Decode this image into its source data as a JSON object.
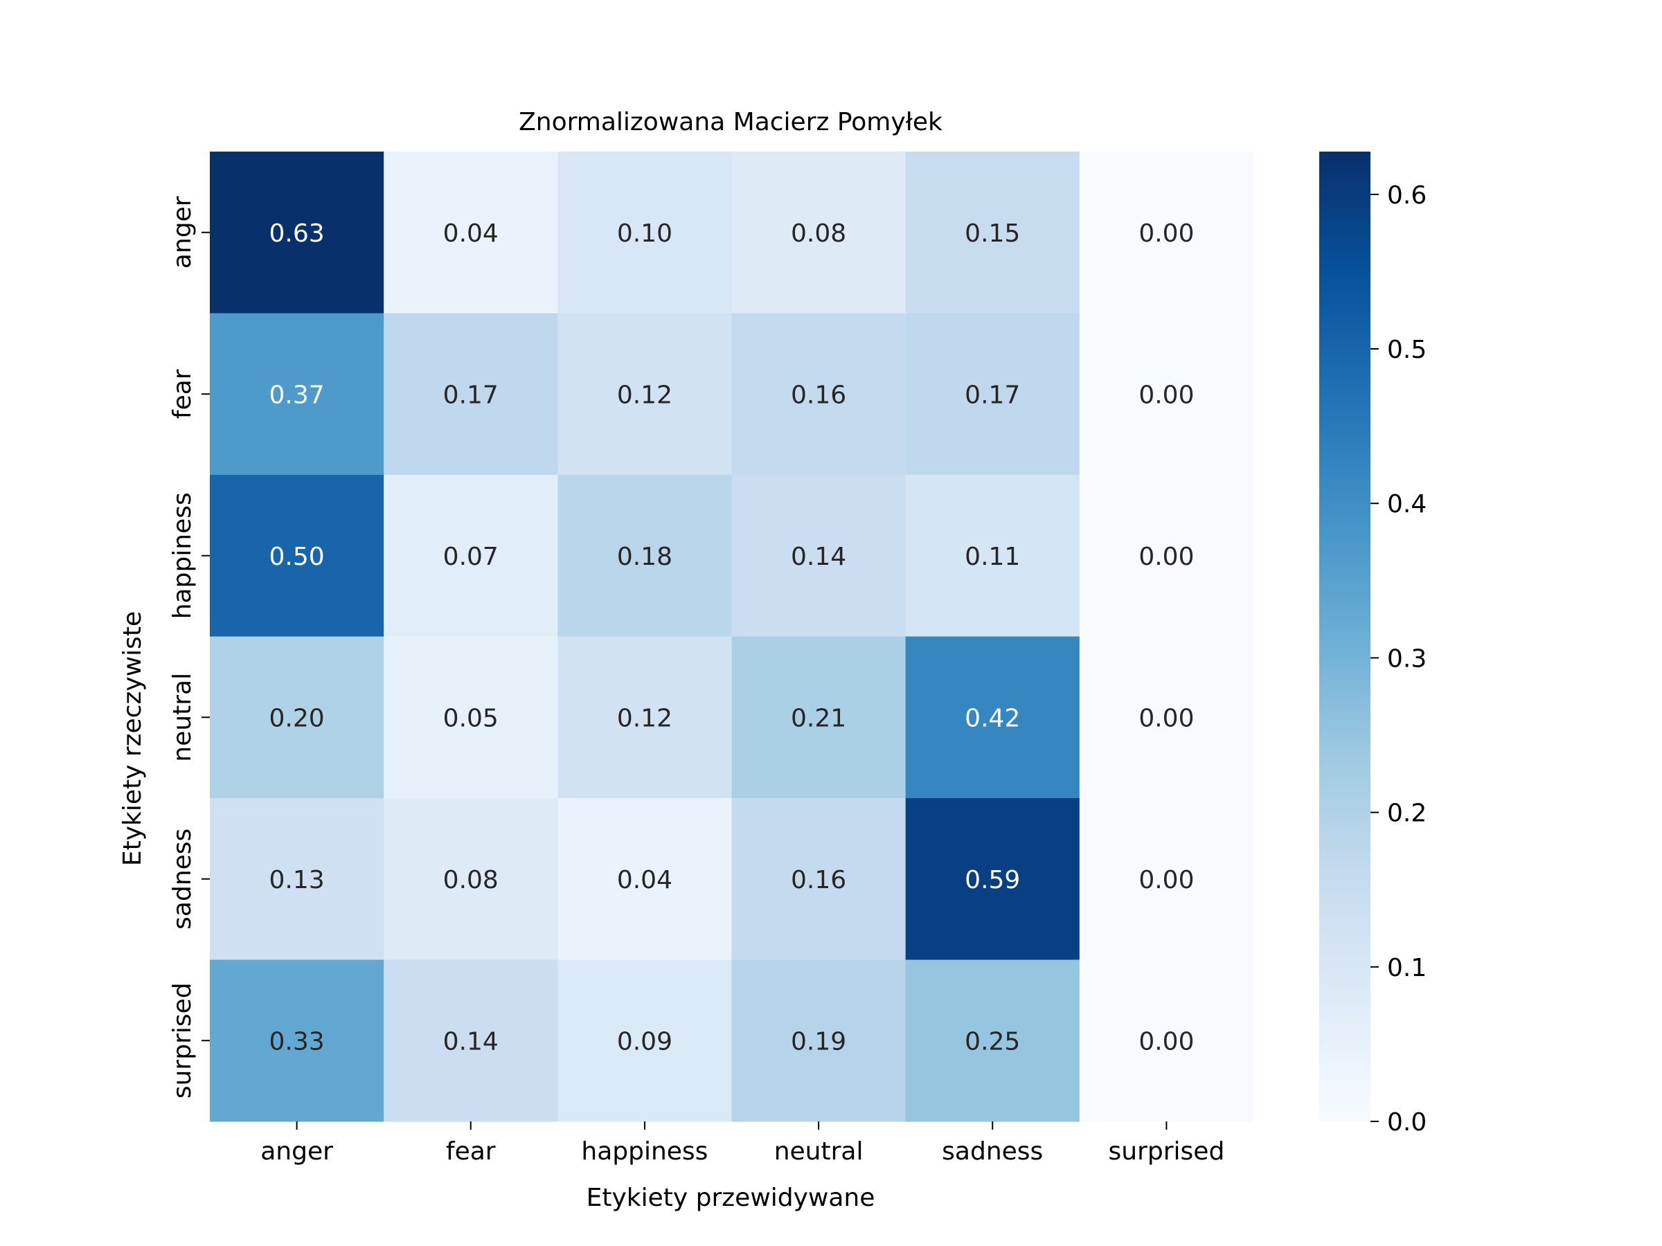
{
  "chart_data": {
    "type": "heatmap",
    "title": "Znormalizowana Macierz Pomyłek",
    "xlabel": "Etykiety przewidywane",
    "ylabel": "Etykiety rzeczywiste",
    "x_categories": [
      "anger",
      "fear",
      "happiness",
      "neutral",
      "sadness",
      "surprised"
    ],
    "y_categories": [
      "anger",
      "fear",
      "happiness",
      "neutral",
      "sadness",
      "surprised"
    ],
    "values": [
      [
        0.63,
        0.04,
        0.1,
        0.08,
        0.15,
        0.0
      ],
      [
        0.37,
        0.17,
        0.12,
        0.16,
        0.17,
        0.0
      ],
      [
        0.5,
        0.07,
        0.18,
        0.14,
        0.11,
        0.0
      ],
      [
        0.2,
        0.05,
        0.12,
        0.21,
        0.42,
        0.0
      ],
      [
        0.13,
        0.08,
        0.04,
        0.16,
        0.59,
        0.0
      ],
      [
        0.33,
        0.14,
        0.09,
        0.19,
        0.25,
        0.0
      ]
    ],
    "colormap": "Blues",
    "colorbar": {
      "range": [
        0.0,
        0.6277
      ],
      "ticks": [
        0.0,
        0.1,
        0.2,
        0.3,
        0.4,
        0.5,
        0.6
      ]
    }
  }
}
